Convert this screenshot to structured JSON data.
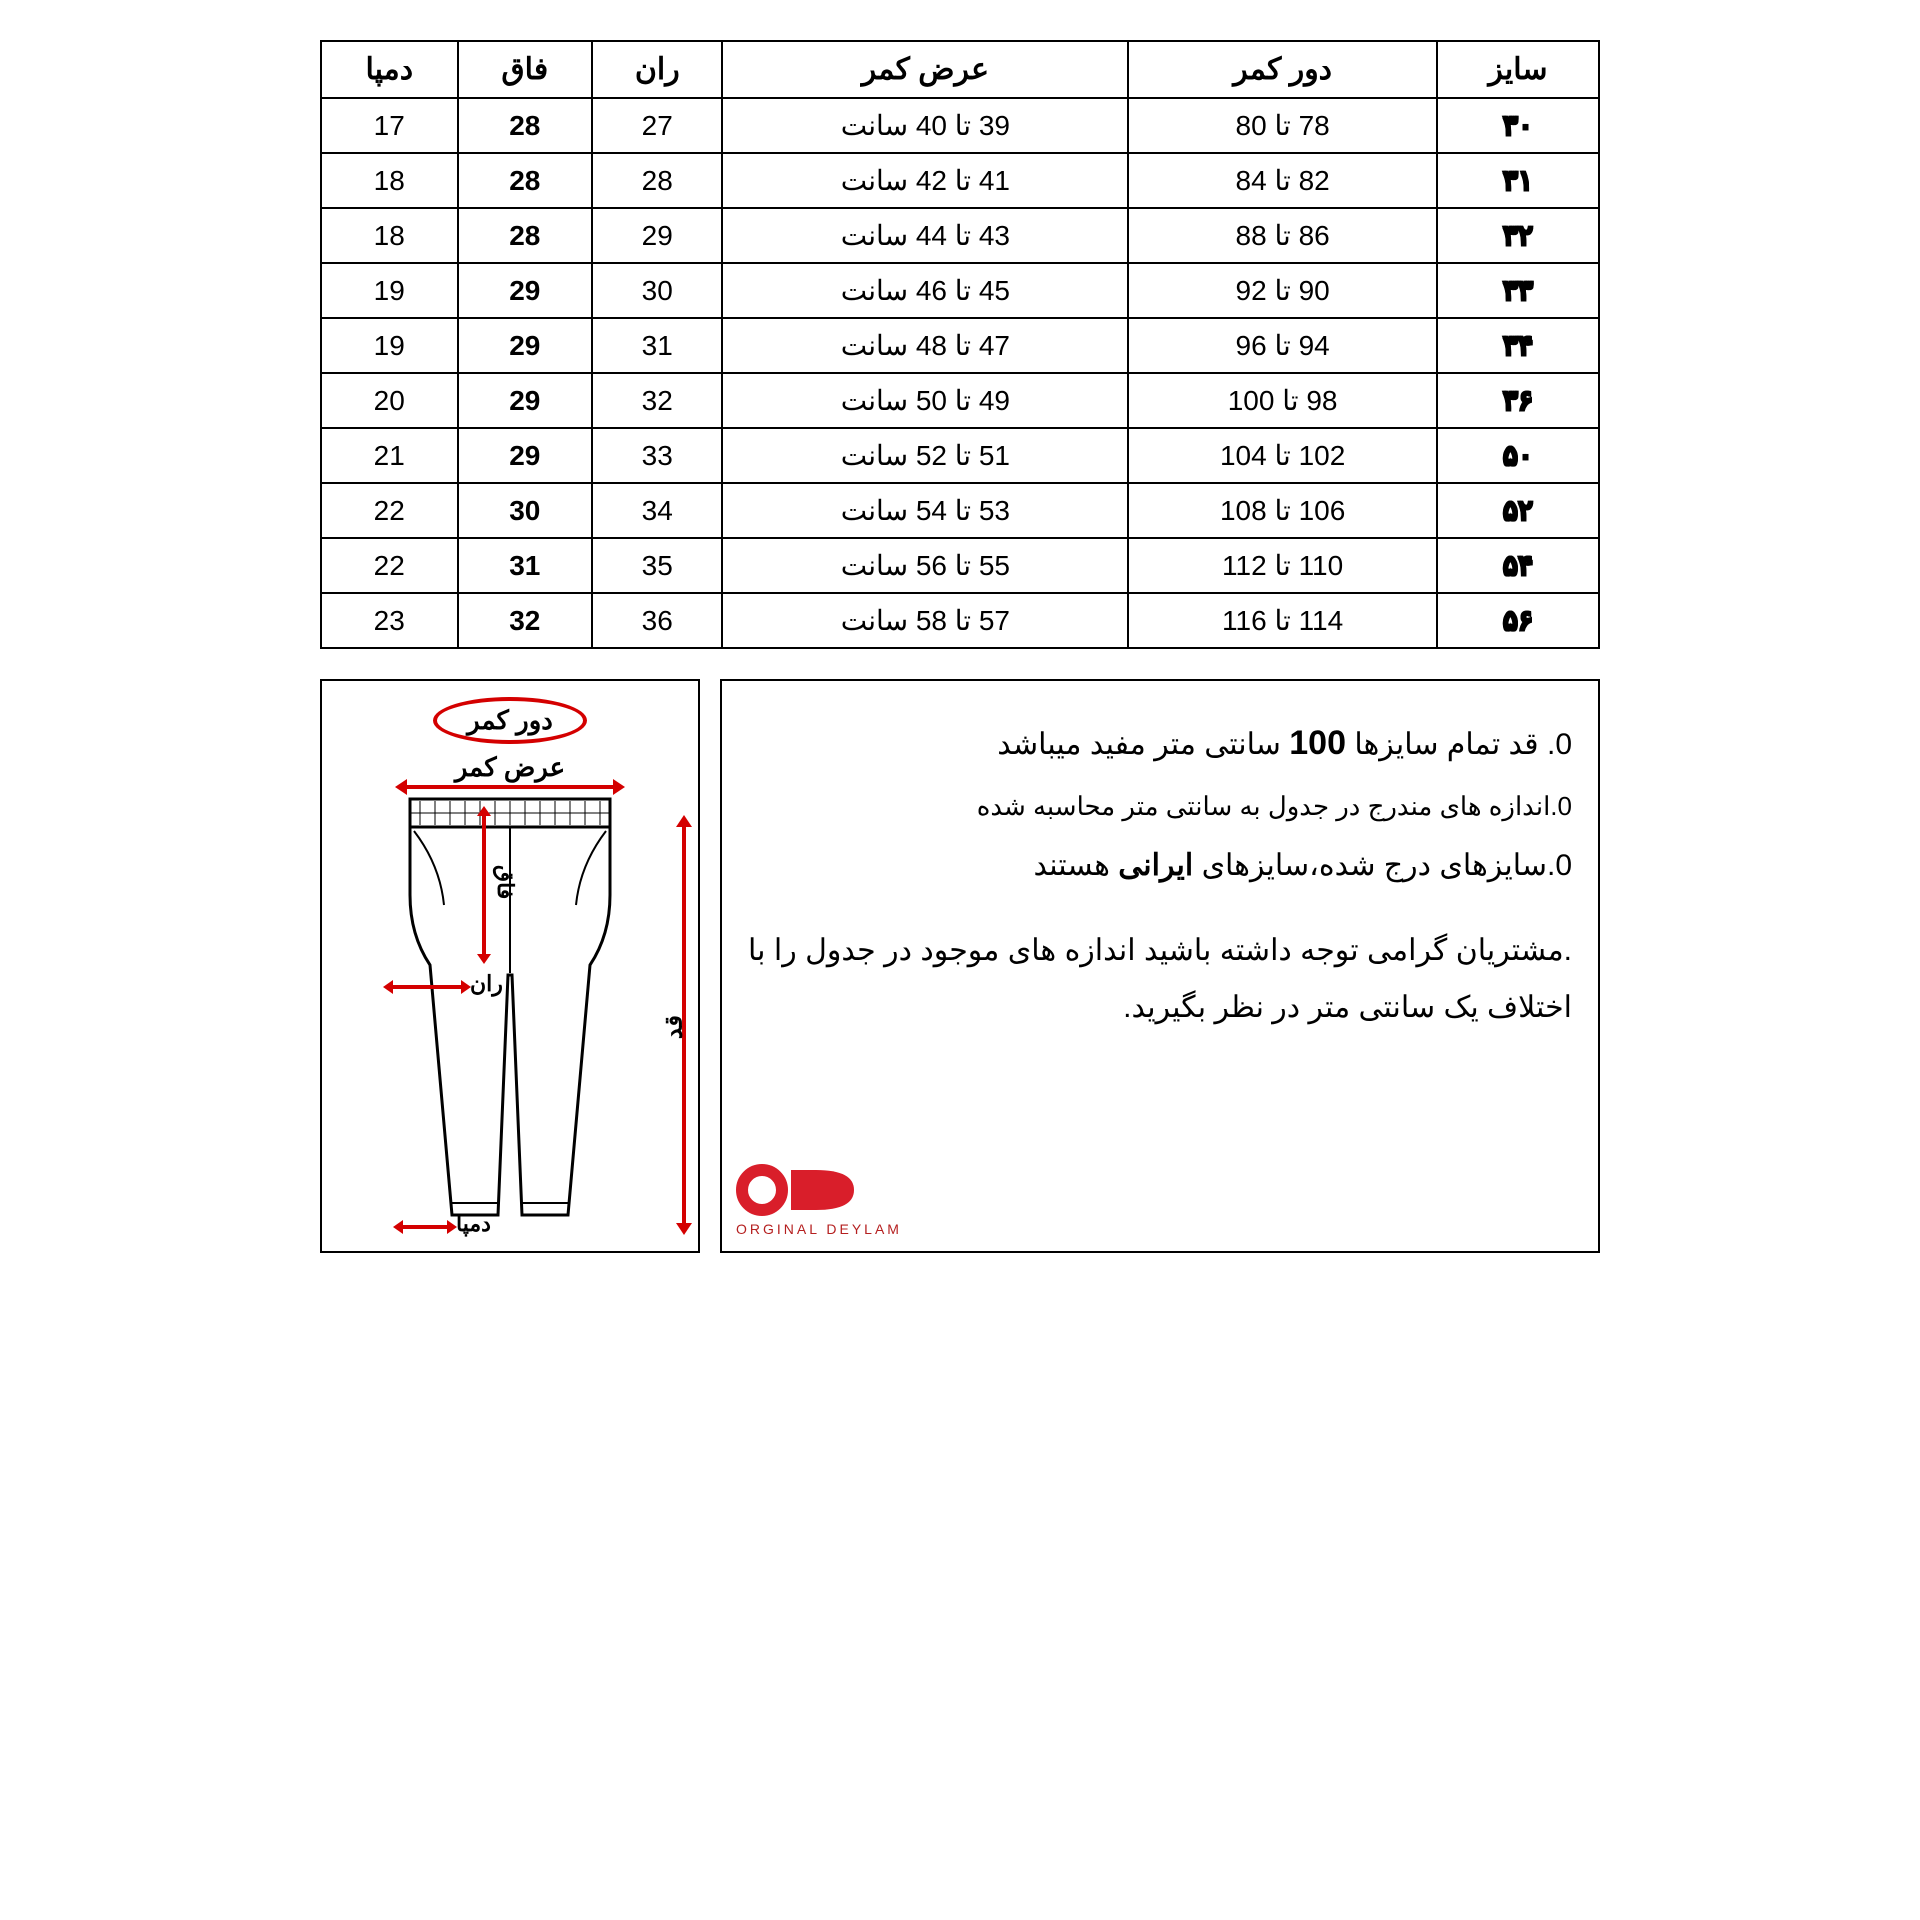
{
  "table": {
    "headers": [
      "سایز",
      "دور کمر",
      "عرض کمر",
      "ران",
      "فاق",
      "دمپا"
    ],
    "rows": [
      {
        "size": "۳۰",
        "waist_circ": "78 تا 80",
        "waist_width": "39 تا 40 سانت",
        "thigh": "27",
        "rise": "28",
        "hem": "17"
      },
      {
        "size": "۳۱",
        "waist_circ": "82 تا 84",
        "waist_width": "41 تا 42 سانت",
        "thigh": "28",
        "rise": "28",
        "hem": "18"
      },
      {
        "size": "۳۲",
        "waist_circ": "86 تا 88",
        "waist_width": "43 تا 44 سانت",
        "thigh": "29",
        "rise": "28",
        "hem": "18"
      },
      {
        "size": "۳۳",
        "waist_circ": "90 تا 92",
        "waist_width": "45 تا 46 سانت",
        "thigh": "30",
        "rise": "29",
        "hem": "19"
      },
      {
        "size": "۳۴",
        "waist_circ": "94 تا 96",
        "waist_width": "47 تا 48 سانت",
        "thigh": "31",
        "rise": "29",
        "hem": "19"
      },
      {
        "size": "۳۶",
        "waist_circ": "98 تا 100",
        "waist_width": "49 تا 50 سانت",
        "thigh": "32",
        "rise": "29",
        "hem": "20"
      },
      {
        "size": "۵۰",
        "waist_circ": "102 تا 104",
        "waist_width": "51 تا 52 سانت",
        "thigh": "33",
        "rise": "29",
        "hem": "21"
      },
      {
        "size": "۵۲",
        "waist_circ": "106 تا 108",
        "waist_width": "53 تا 54 سانت",
        "thigh": "34",
        "rise": "30",
        "hem": "22"
      },
      {
        "size": "۵۴",
        "waist_circ": "110 تا 112",
        "waist_width": "55 تا 56 سانت",
        "thigh": "35",
        "rise": "31",
        "hem": "22"
      },
      {
        "size": "۵۶",
        "waist_circ": "114 تا 116",
        "waist_width": "57 تا 58 سانت",
        "thigh": "36",
        "rise": "32",
        "hem": "23"
      }
    ]
  },
  "notes": {
    "line1_pre": "0. قد تمام سایزها",
    "line1_num": "100",
    "line1_post": "سانتی متر مفید میباشد",
    "line2": "0.اندازه های مندرج در جدول به سانتی متر محاسبه شده",
    "line3_pre": "0.سایزهای درج شده،سایزهای",
    "line3_em": " ایرانی",
    "line3_post": "هستند",
    "line4": ".مشتریان گرامی توجه داشته باشید اندازه های موجود در جدول را با اختلاف یک سانتی متر در نظر بگیرید."
  },
  "diagram": {
    "waist_circ_label": "دور کمر",
    "waist_width_label": "عرض کمر",
    "rise_label": "فاق",
    "thigh_label": "ران",
    "hem_label": "دمپا",
    "length_label": "قد"
  },
  "logo": {
    "text": "OD",
    "subtitle": "ORGINAL DEYLAM"
  },
  "colors": {
    "accent_yellow": "#f5b800",
    "accent_red": "#d40000",
    "logo_red": "#d91e2a",
    "border": "#000000",
    "bg": "#ffffff"
  }
}
